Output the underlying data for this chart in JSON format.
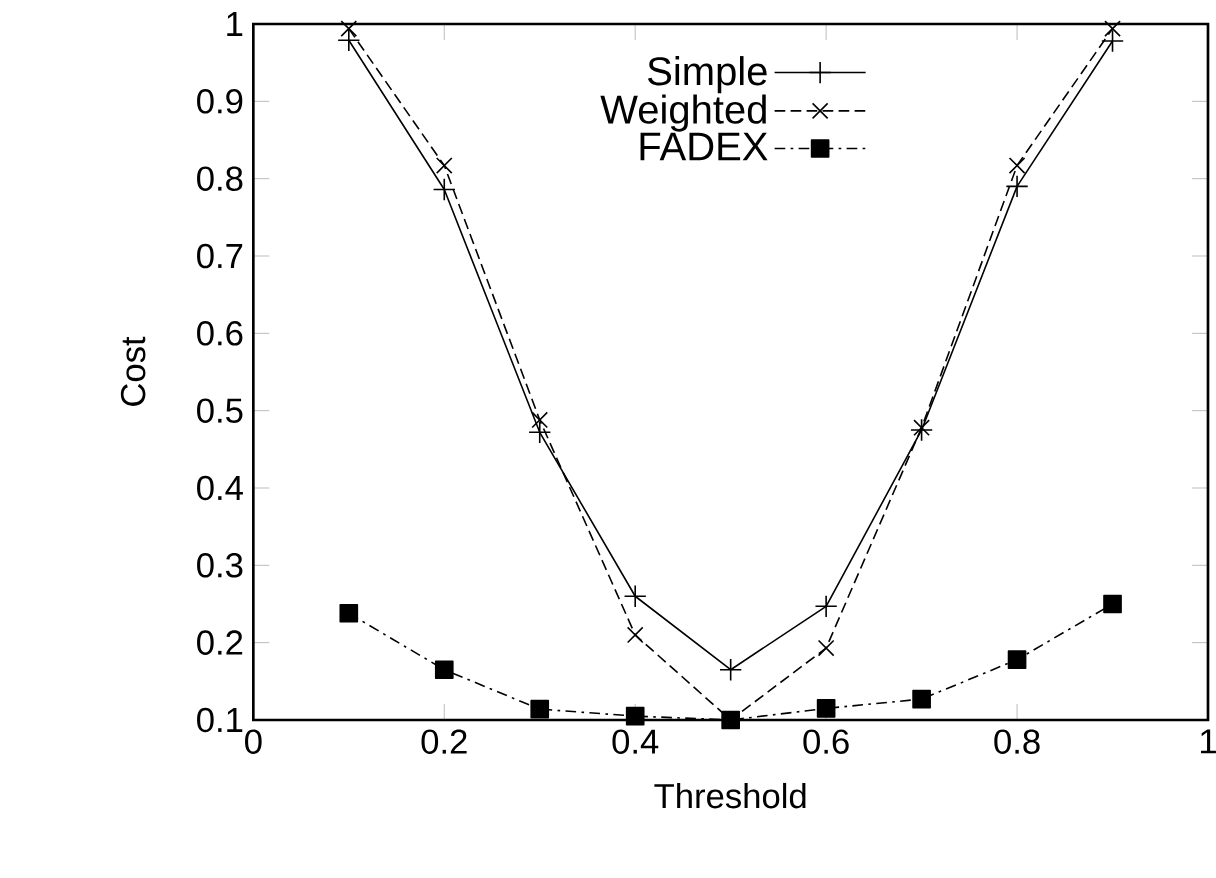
{
  "chart_data": {
    "type": "line",
    "xlabel": "Threshold",
    "ylabel": "Cost",
    "x": [
      0.1,
      0.2,
      0.3,
      0.4,
      0.5,
      0.6,
      0.7,
      0.8,
      0.9
    ],
    "xlim": [
      0,
      1
    ],
    "xticks": [
      0,
      0.2,
      0.4,
      0.6,
      0.8,
      1
    ],
    "ylim": [
      0.1,
      1
    ],
    "yticks": [
      0.1,
      0.2,
      0.3,
      0.4,
      0.5,
      0.6,
      0.7,
      0.8,
      0.9,
      1
    ],
    "grid": false,
    "legend": "top",
    "series": [
      {
        "name": "Simple",
        "color": "#000000",
        "marker": "plus",
        "line_style": "solid",
        "values": [
          0.979,
          0.786,
          0.472,
          0.26,
          0.165,
          0.247,
          0.475,
          0.79,
          0.978
        ]
      },
      {
        "name": "Weighted",
        "color": "#000000",
        "marker": "cross",
        "line_style": "dashed",
        "values": [
          0.994,
          0.817,
          0.488,
          0.21,
          0.1,
          0.193,
          0.478,
          0.817,
          0.994
        ]
      },
      {
        "name": "FADEX",
        "color": "#000000",
        "marker": "square",
        "line_style": "dashdot",
        "values": [
          0.238,
          0.165,
          0.114,
          0.105,
          0.1,
          0.115,
          0.127,
          0.178,
          0.25
        ]
      }
    ]
  }
}
